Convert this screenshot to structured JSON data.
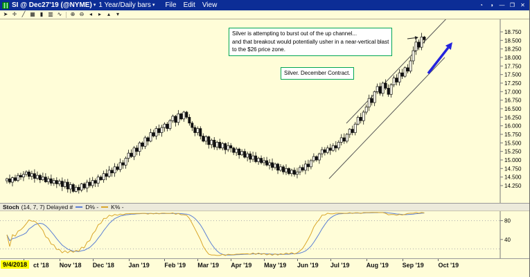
{
  "window": {
    "title_symbol": "SI @ Dec27'19 (@NYME)",
    "dropdown_arrow": "▾",
    "title_period": "1 Year/Daily bars",
    "menus": [
      "File",
      "Edit",
      "View"
    ],
    "controls": [
      {
        "name": "clock-icon",
        "glyph": "◔"
      },
      {
        "name": "contrast-icon",
        "glyph": "◑"
      },
      {
        "name": "minimize-icon",
        "glyph": "—"
      },
      {
        "name": "restore-icon",
        "glyph": "❐"
      },
      {
        "name": "close-icon",
        "glyph": "✕"
      }
    ]
  },
  "toolbar": {
    "icons": [
      {
        "name": "pointer-icon",
        "glyph": "➤"
      },
      {
        "name": "crosshair-icon",
        "glyph": "✛"
      },
      {
        "name": "trendline-icon",
        "glyph": "╱"
      },
      {
        "name": "grid-icon",
        "glyph": "▦"
      },
      {
        "name": "candlestick-icon",
        "glyph": "▮"
      },
      {
        "name": "bar-chart-icon",
        "glyph": "▥"
      },
      {
        "name": "line-chart-icon",
        "glyph": "∿"
      },
      {
        "name": "zoom-in-icon",
        "glyph": "⊕"
      },
      {
        "name": "zoom-out-icon",
        "glyph": "⊖"
      },
      {
        "name": "scroll-left-icon",
        "glyph": "◂"
      },
      {
        "name": "scroll-right-icon",
        "glyph": "▸"
      },
      {
        "name": "up-arrow-icon",
        "glyph": "▴"
      },
      {
        "name": "down-arrow-icon",
        "glyph": "▾"
      }
    ]
  },
  "colors": {
    "titlebar_blue": "#0c2d96",
    "chart_bg": "#fffdd8",
    "annotation_green": "#00a651",
    "arrow_blue": "#2323dd",
    "highlight_yellow": "#ffff00",
    "candle_black": "#111111",
    "stoch_d_blue": "#5b7fd4",
    "stoch_k_yellow": "#d9a62a"
  },
  "chart_data": {
    "type": "candlestick",
    "title": "Silver December 2019 contract, 1 Year / Daily bars",
    "start_date_label": "9/4/2018",
    "x_labels": [
      "ct '18",
      "Nov '18",
      "Dec '18",
      "Jan '19",
      "Feb '19",
      "Mar '19",
      "Apr '19",
      "May '19",
      "Jun '19",
      "Jul '19",
      "Aug '19",
      "Sep '19",
      "Oct '19"
    ],
    "month_start_indices": [
      6,
      19,
      31,
      44,
      57,
      69,
      81,
      93,
      105,
      117,
      130,
      143,
      156
    ],
    "y_ticks": [
      "18.750",
      "18.500",
      "18.250",
      "18.000",
      "17.750",
      "17.500",
      "17.250",
      "17.000",
      "16.750",
      "16.500",
      "16.250",
      "16.000",
      "15.750",
      "15.500",
      "15.250",
      "15.000",
      "14.750",
      "14.500",
      "14.250"
    ],
    "ylim": [
      13.7,
      19.1
    ],
    "closes": [
      14.45,
      14.35,
      14.48,
      14.4,
      14.55,
      14.5,
      14.58,
      14.65,
      14.52,
      14.6,
      14.46,
      14.55,
      14.42,
      14.5,
      14.36,
      14.45,
      14.32,
      14.4,
      14.3,
      14.38,
      14.22,
      14.35,
      14.15,
      14.28,
      14.08,
      14.2,
      14.12,
      14.3,
      14.18,
      14.35,
      14.25,
      14.4,
      14.32,
      14.5,
      14.42,
      14.6,
      14.52,
      14.7,
      14.62,
      14.8,
      14.72,
      14.92,
      14.85,
      15.05,
      15.2,
      15.1,
      15.35,
      15.25,
      15.5,
      15.4,
      15.65,
      15.55,
      15.8,
      15.7,
      15.92,
      15.8,
      15.95,
      16.05,
      15.92,
      16.15,
      16.28,
      16.1,
      16.35,
      16.2,
      16.4,
      16.25,
      16.08,
      15.95,
      15.8,
      15.92,
      15.7,
      15.55,
      15.68,
      15.45,
      15.58,
      15.38,
      15.52,
      15.35,
      15.48,
      15.3,
      15.42,
      15.35,
      15.22,
      15.32,
      15.15,
      15.25,
      15.08,
      15.18,
      15.02,
      15.12,
      14.95,
      15.05,
      14.92,
      14.98,
      14.85,
      14.92,
      14.78,
      14.88,
      14.7,
      14.8,
      14.65,
      14.75,
      14.6,
      14.7,
      14.58,
      14.65,
      14.78,
      14.7,
      14.88,
      14.8,
      14.98,
      15.1,
      15.0,
      15.18,
      15.3,
      15.22,
      15.35,
      15.28,
      15.42,
      15.35,
      15.52,
      15.65,
      15.55,
      15.75,
      15.9,
      15.8,
      16.05,
      16.25,
      16.15,
      16.4,
      16.55,
      16.8,
      16.68,
      17.0,
      17.15,
      16.95,
      17.25,
      17.1,
      16.92,
      17.2,
      17.4,
      17.28,
      17.55,
      17.45,
      17.7,
      17.6,
      17.9,
      18.2,
      18.45,
      18.3,
      18.6,
      18.52
    ],
    "annotations": [
      {
        "text": "Silver is attempting to burst out of the up channel...\nand that breakout would potentially usher in a near-vertical blast\nto the $26 price zone."
      },
      {
        "text": "Silver. December Contract."
      }
    ],
    "overlays": {
      "channel_lower": [
        475,
        230,
        642,
        55
      ],
      "channel_upper": [
        500,
        150,
        650,
        -7
      ],
      "blue_arrow": {
        "from": [
          618,
          78
        ],
        "to": [
          653,
          33
        ]
      },
      "pointer_arrow": {
        "from": [
          588,
          28
        ],
        "to": [
          604,
          26
        ]
      }
    },
    "stoch": {
      "label": "Stoch",
      "params": "(14, 7, 7) Delayed #",
      "d_label": "D% -",
      "k_label": "K% -",
      "y_tick_labels": [
        "80",
        "40"
      ],
      "gridlines": [
        80,
        20
      ],
      "range": [
        0,
        100
      ]
    }
  }
}
